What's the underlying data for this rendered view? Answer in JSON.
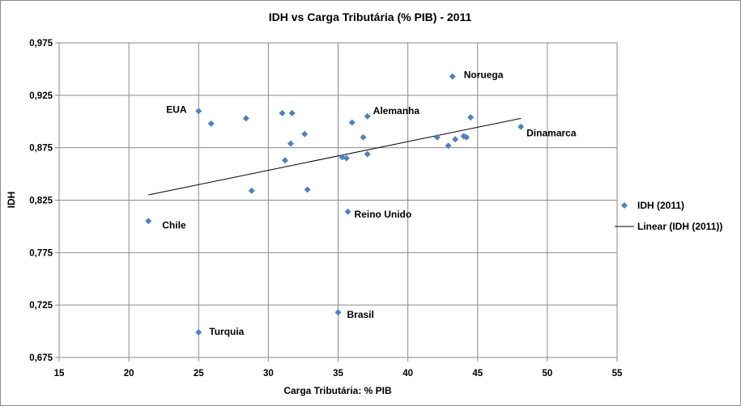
{
  "chart_data": {
    "type": "scatter",
    "title": "IDH vs Carga Tributária (% PIB) - 2011",
    "xlabel": "Carga Tributária: % PIB",
    "ylabel": "IDH",
    "xlim": [
      15,
      55
    ],
    "ylim": [
      0.675,
      0.975
    ],
    "x_ticks": [
      "15",
      "20",
      "25",
      "30",
      "35",
      "40",
      "45",
      "50",
      "55"
    ],
    "y_ticks": [
      "0,675",
      "0,725",
      "0,775",
      "0,825",
      "0,875",
      "0,925",
      "0,975"
    ],
    "grid": true,
    "legend_position": "right",
    "marker_color": "#4f81bd",
    "series": [
      {
        "name": "IDH (2011)",
        "points": [
          {
            "x": 25.0,
            "y": 0.91,
            "label": "EUA"
          },
          {
            "x": 25.9,
            "y": 0.898
          },
          {
            "x": 28.4,
            "y": 0.903
          },
          {
            "x": 31.0,
            "y": 0.908
          },
          {
            "x": 31.7,
            "y": 0.908
          },
          {
            "x": 37.1,
            "y": 0.905,
            "label": "Alemanha"
          },
          {
            "x": 43.2,
            "y": 0.943,
            "label": "Noruega"
          },
          {
            "x": 44.5,
            "y": 0.904
          },
          {
            "x": 48.1,
            "y": 0.895,
            "label": "Dinamarca"
          },
          {
            "x": 36.0,
            "y": 0.899
          },
          {
            "x": 32.6,
            "y": 0.888
          },
          {
            "x": 31.6,
            "y": 0.879
          },
          {
            "x": 36.8,
            "y": 0.885
          },
          {
            "x": 42.1,
            "y": 0.885
          },
          {
            "x": 43.4,
            "y": 0.883
          },
          {
            "x": 44.0,
            "y": 0.886
          },
          {
            "x": 44.2,
            "y": 0.885
          },
          {
            "x": 42.9,
            "y": 0.877
          },
          {
            "x": 37.1,
            "y": 0.869
          },
          {
            "x": 35.3,
            "y": 0.866
          },
          {
            "x": 35.6,
            "y": 0.865
          },
          {
            "x": 31.2,
            "y": 0.863
          },
          {
            "x": 28.8,
            "y": 0.834
          },
          {
            "x": 32.8,
            "y": 0.835
          },
          {
            "x": 35.7,
            "y": 0.814,
            "label": "Reino Unido"
          },
          {
            "x": 21.4,
            "y": 0.805,
            "label": "Chile"
          },
          {
            "x": 35.0,
            "y": 0.718,
            "label": "Brasil"
          },
          {
            "x": 25.0,
            "y": 0.699,
            "label": "Turquia"
          }
        ]
      },
      {
        "name": "Linear (IDH (2011))",
        "type": "trendline",
        "x": [
          21.4,
          48.1
        ],
        "y": [
          0.83,
          0.903
        ]
      }
    ]
  }
}
